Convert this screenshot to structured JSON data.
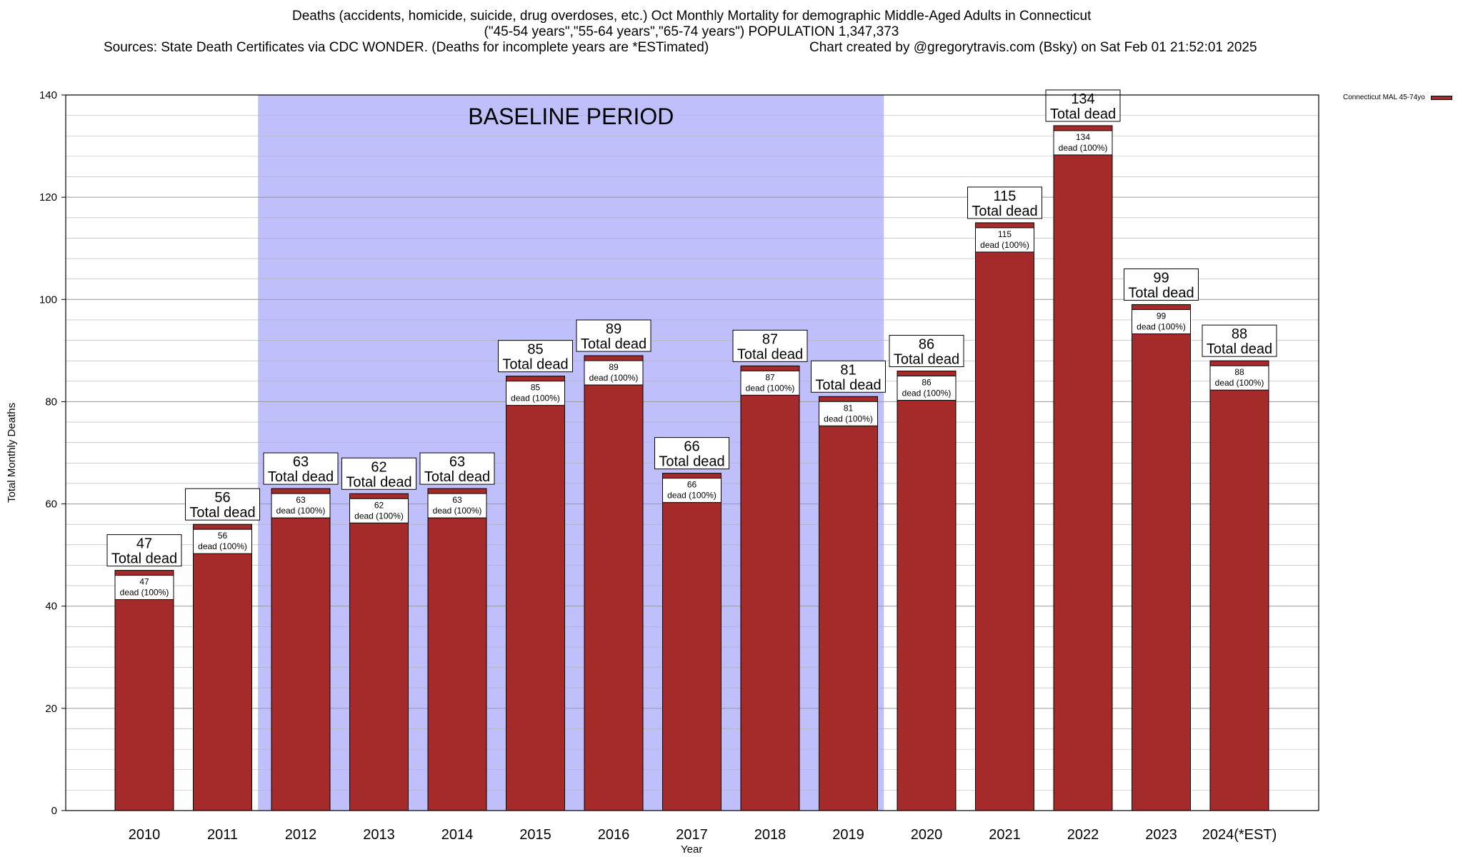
{
  "title": {
    "line1": "Deaths (accidents, homicide, suicide, drug overdoses, etc.) Oct Monthly Mortality for demographic Middle-Aged Adults in Connecticut",
    "line2": "(\"45-54 years\",\"55-64 years\",\"65-74 years\") POPULATION 1,347,373",
    "line3a": "Sources: State Death Certificates via CDC WONDER. (Deaths for incomplete years are *ESTimated)",
    "line3b": "Chart created by @gregorytravis.com (Bsky) on Sat Feb 01 21:52:01 2025"
  },
  "colors": {
    "bar": "#a52a2a",
    "baseline_shade": "#bfbffc",
    "grid": "#b0b0b0"
  },
  "chart_data": {
    "type": "bar",
    "title": "Deaths (accidents, homicide, suicide, drug overdoses, etc.) Oct Monthly Mortality for demographic Middle-Aged Adults in Connecticut",
    "xlabel": "Year",
    "ylabel": "Total Monthly Deaths",
    "ylim": [
      0,
      140
    ],
    "yticks": [
      0,
      20,
      40,
      60,
      80,
      100,
      120,
      140
    ],
    "grid": true,
    "legend_position": "top-right",
    "categories": [
      "2010",
      "2011",
      "2012",
      "2013",
      "2014",
      "2015",
      "2016",
      "2017",
      "2018",
      "2019",
      "2020",
      "2021",
      "2022",
      "2023",
      "2024(*EST)"
    ],
    "series": [
      {
        "name": "Connecticut MAL 45-74yo",
        "values": [
          47,
          56,
          63,
          62,
          63,
          85,
          89,
          66,
          87,
          81,
          86,
          115,
          134,
          99,
          88
        ]
      }
    ],
    "top_label_suffix": "Total dead",
    "inner_label_suffix": "dead (100%)",
    "shaded_region": {
      "label": "BASELINE PERIOD",
      "from_category": "2012",
      "to_category": "2019"
    }
  }
}
